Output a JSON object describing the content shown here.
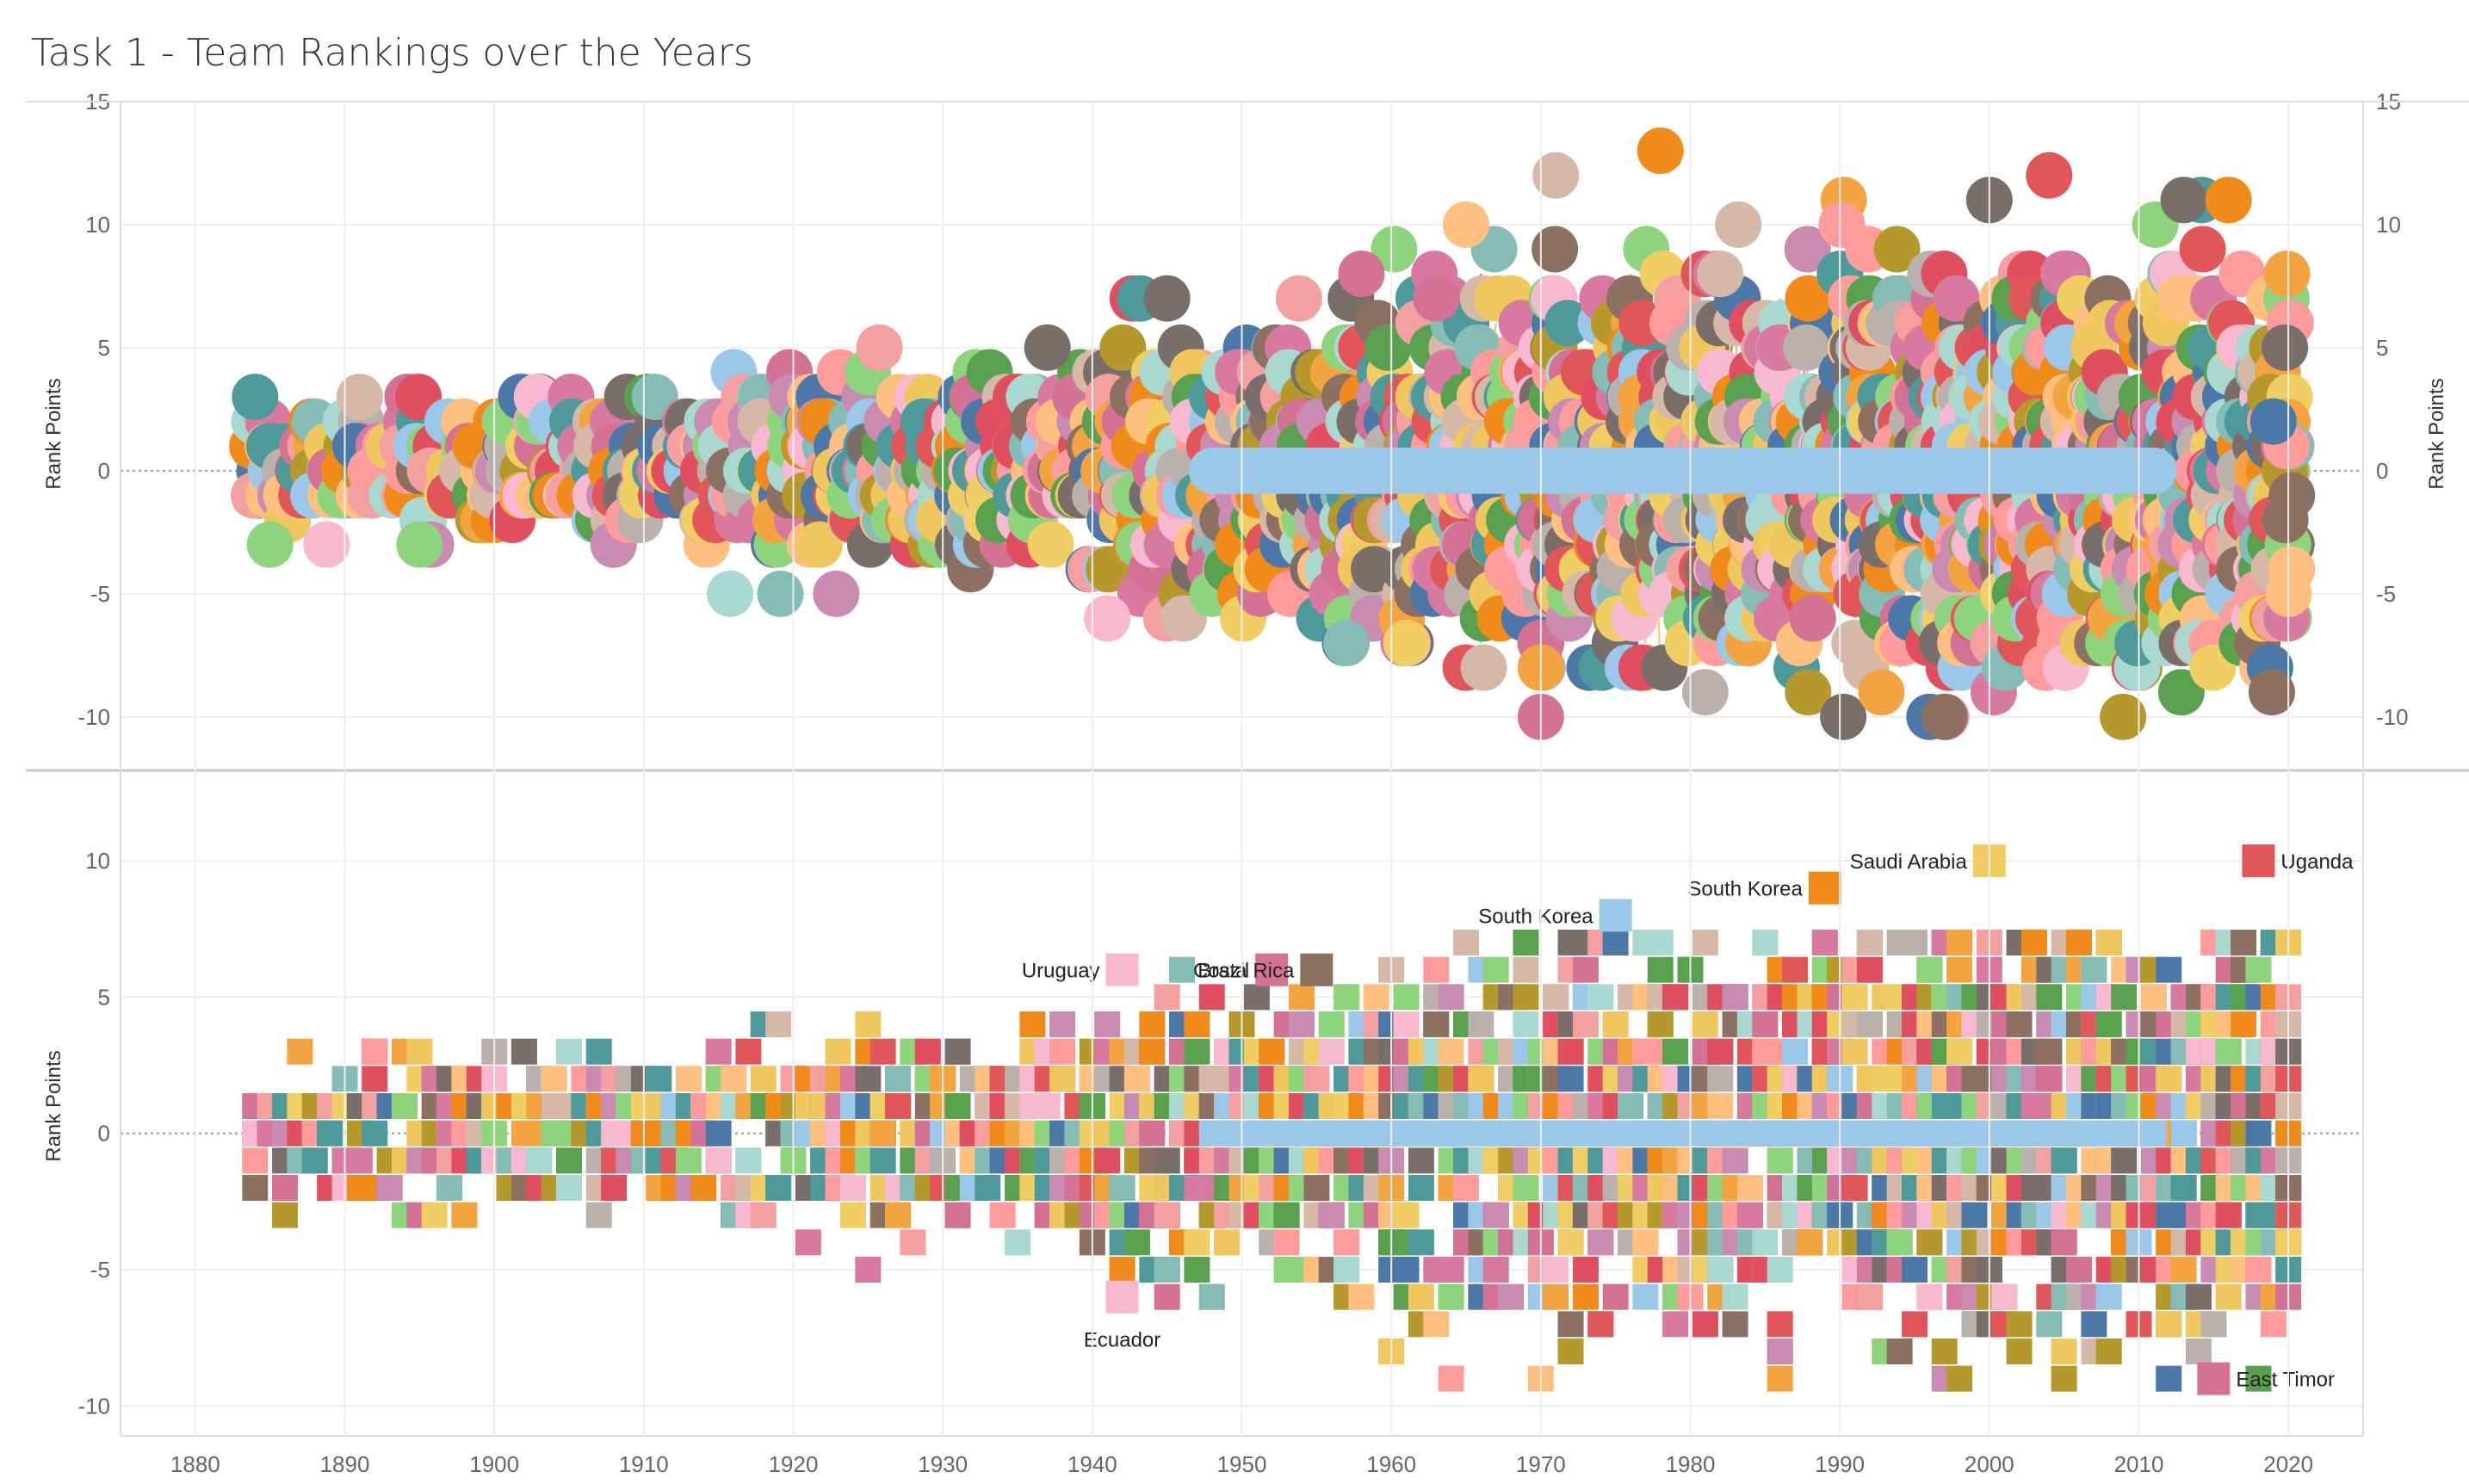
{
  "title": "Task 1 - Team Rankings over the Years",
  "colors": {
    "palette": [
      "#4e9a9a",
      "#d6b8a8",
      "#9bc8e8",
      "#8ed47c",
      "#7a6e6a",
      "#e04f5f",
      "#f4a0a0",
      "#c98bb2",
      "#ff9b9b",
      "#ffbf7f",
      "#a8d8cf",
      "#f0c75e",
      "#f4a341",
      "#d87aa0",
      "#ef8a1b",
      "#8c7061",
      "#4c78a8",
      "#b6992d",
      "#59a14f",
      "#f8b8d0",
      "#86bcb6",
      "#e15759",
      "#bab0ac",
      "#f1ce63",
      "#d37295"
    ],
    "zero_line": "#999999",
    "grid": "#eeeeee",
    "pane_border": "#cccccc"
  },
  "chart_data": [
    {
      "type": "scatter",
      "title": "Task 1 - Team Rankings over the Years",
      "pane": "top",
      "marks": "large circles, one per team-year, connected by thin lines per team",
      "xlabel": "",
      "ylabel": "Rank Points",
      "ylabel_right": "Rank Points",
      "xlim": [
        1875,
        2025
      ],
      "ylim": [
        -12,
        15
      ],
      "yticks": [
        15,
        10,
        5,
        0,
        -5,
        -10
      ],
      "xticks": [
        1880,
        1890,
        1900,
        1910,
        1920,
        1930,
        1940,
        1950,
        1960,
        1970,
        1980,
        1990,
        2000,
        2010,
        2020
      ],
      "grid": true,
      "highlights": [
        {
          "x": 1978,
          "y": 13,
          "color": "#ef8a1b"
        },
        {
          "x": 2004,
          "y": 12,
          "color": "#e15759"
        },
        {
          "x": 1971,
          "y": 12,
          "color": "#d6b8a8"
        },
        {
          "x": 2000,
          "y": 11,
          "color": "#7a6e6a"
        },
        {
          "x": 2013,
          "y": 11,
          "color": "#7a6e6a"
        },
        {
          "x": 2016,
          "y": 11,
          "color": "#ef8a1b"
        },
        {
          "x": 1965,
          "y": 10,
          "color": "#ffbf7f"
        },
        {
          "x": 1970,
          "y": -10,
          "color": "#d37295"
        },
        {
          "x": 1996,
          "y": -10,
          "color": "#4c78a8"
        },
        {
          "x": 1997,
          "y": -10,
          "color": "#8c7061"
        },
        {
          "x": 1981,
          "y": -9,
          "color": "#bab0ac"
        },
        {
          "x": 1961,
          "y": -7,
          "color": "#f1ce63"
        },
        {
          "x": 1941,
          "y": -6,
          "color": "#f8b8d0"
        },
        {
          "x": 1957,
          "y": -7,
          "color": "#86bcb6"
        },
        {
          "x": 1884,
          "y": 3,
          "color": "#4e9a9a"
        },
        {
          "x": 1885,
          "y": -3,
          "color": "#8ed47c"
        },
        {
          "x": 1895,
          "y": -3,
          "color": "#8ed47c"
        },
        {
          "x": 1891,
          "y": 3,
          "color": "#d6b8a8"
        },
        {
          "x": 1937,
          "y": 5,
          "color": "#7a6e6a"
        },
        {
          "x": 1945,
          "y": 7,
          "color": "#7a6e6a"
        },
        {
          "x": 1958,
          "y": 8,
          "color": "#d37295"
        },
        {
          "x": 1963,
          "y": 7,
          "color": "#d37295"
        },
        {
          "x": 1982,
          "y": 8,
          "color": "#d6b8a8"
        },
        {
          "x": 2019,
          "y": 2,
          "color": "#4c78a8"
        }
      ],
      "zero_line_series": {
        "name": "",
        "y": 0,
        "x_range": [
          1948,
          2011
        ],
        "color": "#9bc8e8"
      }
    },
    {
      "type": "heatmap",
      "pane": "bottom",
      "marks": "squares, one per team-year",
      "xlabel": "",
      "ylabel": "Rank Points",
      "xlim": [
        1875,
        2025
      ],
      "ylim": [
        -11,
        13
      ],
      "yticks": [
        10,
        5,
        0,
        -5,
        -10
      ],
      "xticks": [
        1880,
        1890,
        1900,
        1910,
        1920,
        1930,
        1940,
        1950,
        1960,
        1970,
        1980,
        1990,
        2000,
        2010,
        2020
      ],
      "grid": true,
      "annotations": [
        {
          "label": "Uruguay",
          "x": 1942,
          "y": 6,
          "color": "#f8b8d0"
        },
        {
          "label": "Ecuador",
          "x": 1942,
          "y": -6,
          "color": "#f8b8d0"
        },
        {
          "label": "Brazil",
          "x": 1952,
          "y": 6,
          "color": "#d37295"
        },
        {
          "label": "Costa Rica",
          "x": 1955,
          "y": 6,
          "color": "#8c7061"
        },
        {
          "label": "South Korea",
          "x": 1975,
          "y": 8,
          "color": "#9bc8e8"
        },
        {
          "label": "South Korea",
          "x": 1989,
          "y": 9,
          "color": "#ef8a1b"
        },
        {
          "label": "Saudi Arabia",
          "x": 2000,
          "y": 10,
          "color": "#f1ce63"
        },
        {
          "label": "Uganda",
          "x": 2018,
          "y": 10,
          "color": "#e15759"
        },
        {
          "label": "East Timor",
          "x": 2015,
          "y": -9,
          "color": "#d37295"
        }
      ]
    }
  ]
}
